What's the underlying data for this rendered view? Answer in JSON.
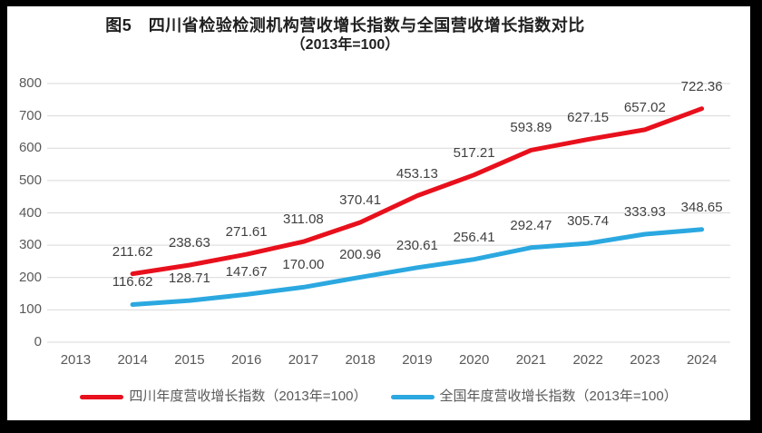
{
  "title": {
    "line1": "图5　四川省检验检测机构营收增长指数与全国营收增长指数对比",
    "line2": "（2013年=100）"
  },
  "colors": {
    "frame": "#000000",
    "background": "#ffffff",
    "gridline": "#d9d9d9",
    "tick_label": "#595959",
    "data_label": "#404040",
    "title_text": "#1f1f1f",
    "sichuan_red": "#e8101c",
    "national_blue": "#2ba8e0"
  },
  "chart_data": {
    "type": "line",
    "categories": [
      "2013",
      "2014",
      "2015",
      "2016",
      "2017",
      "2018",
      "2019",
      "2020",
      "2021",
      "2022",
      "2023",
      "2024"
    ],
    "series": [
      {
        "name": "四川年度营收增长指数（2013年=100）",
        "color": "#e8101c",
        "values": [
          null,
          211.62,
          238.63,
          271.61,
          311.08,
          370.41,
          453.13,
          517.21,
          593.89,
          627.15,
          657.02,
          722.36
        ]
      },
      {
        "name": "全国年度营收增长指数（2013年=100）",
        "color": "#2ba8e0",
        "values": [
          null,
          116.62,
          128.71,
          147.67,
          170.0,
          200.96,
          230.61,
          256.41,
          292.47,
          305.74,
          333.93,
          348.65
        ]
      }
    ],
    "xlabel": "",
    "ylabel": "",
    "ylim": [
      0,
      800
    ],
    "ytick_step": 100,
    "data_label_decimals": 2,
    "grid": true,
    "legend_position": "bottom"
  }
}
